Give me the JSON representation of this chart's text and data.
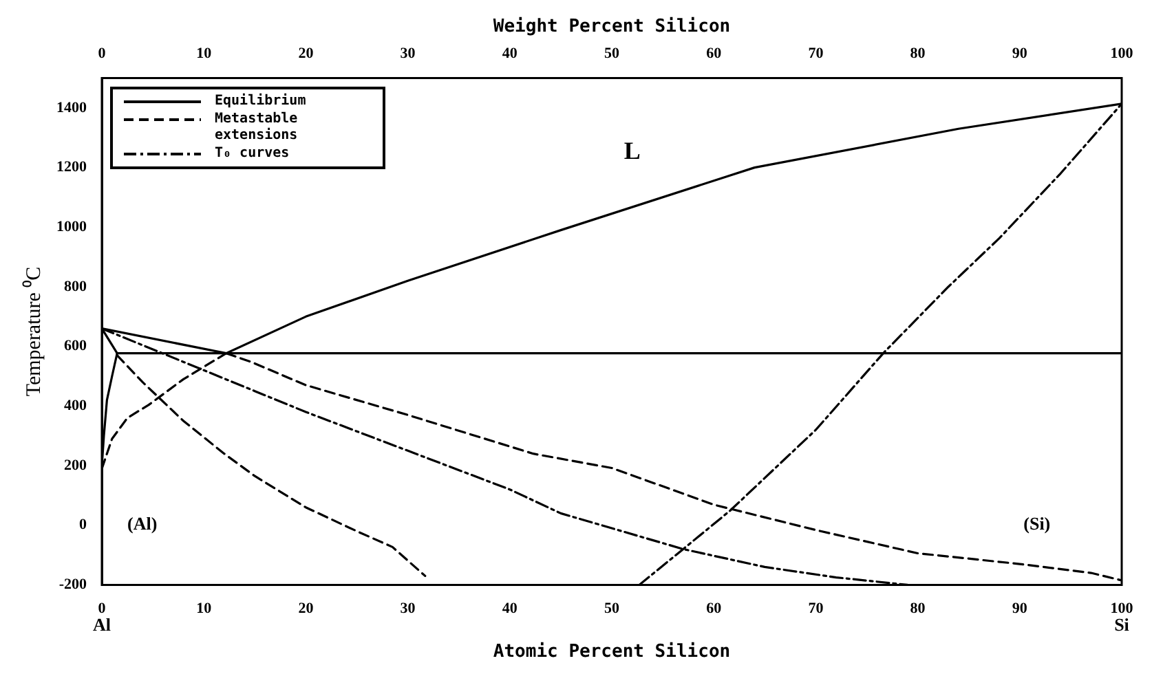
{
  "chart_data": {
    "type": "line",
    "xlabel": "Atomic Percent Silicon",
    "x2label": "Weight Percent Silicon",
    "ylabel": "Temperature ⁰C",
    "xlim": [
      0,
      100
    ],
    "xticks": [
      0,
      10,
      20,
      30,
      40,
      50,
      60,
      70,
      80,
      90,
      100
    ],
    "x2lim": [
      0,
      100
    ],
    "x2ticks": [
      0,
      10,
      20,
      30,
      40,
      50,
      60,
      70,
      80,
      90,
      100
    ],
    "ylim": [
      -200,
      1500
    ],
    "yticks": [
      -200,
      0,
      200,
      400,
      600,
      800,
      1000,
      1200,
      1400
    ],
    "grid": false,
    "legend": "top left",
    "marker": "none",
    "annotations": [
      "L",
      "(Al)",
      "(Si)",
      "Al",
      "Si"
    ],
    "series": [
      {
        "name": "Equilibrium",
        "color": "#000000",
        "line_style": "solid",
        "x": [
          0,
          12.2
        ],
        "values": [
          660,
          577
        ]
      },
      {
        "color": "#000000",
        "line_style": "solid",
        "x": [
          12.2,
          20,
          30,
          45,
          64,
          84,
          100
        ],
        "values": [
          577,
          700,
          820,
          990,
          1200,
          1330,
          1414
        ]
      },
      {
        "color": "#000000",
        "line_style": "solid",
        "x": [
          1.5,
          100
        ],
        "values": [
          577,
          577
        ]
      },
      {
        "color": "#000000",
        "line_style": "solid",
        "x": [
          0,
          1.5
        ],
        "values": [
          660,
          577
        ]
      },
      {
        "color": "#000000",
        "line_style": "solid",
        "x": [
          1.5,
          1,
          0.5,
          0.2,
          0
        ],
        "values": [
          577,
          500,
          420,
          300,
          200
        ]
      },
      {
        "name": "Metastable extensions",
        "color": "#000000",
        "line_style": "dashed",
        "x": [
          12.2,
          14.7,
          20,
          30,
          42.3,
          50,
          60,
          70,
          80,
          90,
          97,
          100
        ],
        "values": [
          577,
          547,
          470,
          370,
          240,
          192,
          69,
          -16,
          -94,
          -130,
          -160,
          -185
        ]
      },
      {
        "color": "#000000",
        "line_style": "dashed",
        "x": [
          1.5,
          4,
          8,
          12,
          15,
          20,
          25,
          28.5,
          31.7
        ],
        "values": [
          570,
          480,
          350,
          240,
          165,
          60,
          -20,
          -73,
          -170
        ]
      },
      {
        "color": "#000000",
        "line_style": "dashed",
        "x": [
          0,
          1,
          2.5,
          4.6,
          8,
          12.2
        ],
        "values": [
          190,
          290,
          360,
          404,
          490,
          577
        ]
      },
      {
        "name": "T₀ curves",
        "color": "#000000",
        "line_style": "dotted",
        "x": [
          0,
          5,
          10,
          15,
          20,
          30,
          40,
          45,
          50,
          57,
          65,
          72,
          79
        ],
        "values": [
          660,
          590,
          520,
          450,
          380,
          250,
          120,
          40,
          -10,
          -80,
          -140,
          -175,
          -200
        ]
      },
      {
        "color": "#000000",
        "line_style": "dotted",
        "x": [
          52.7,
          57,
          61.6,
          70,
          76.7,
          83,
          88,
          94,
          100
        ],
        "values": [
          -200,
          -80,
          49,
          320,
          580,
          800,
          963,
          1180,
          1414
        ]
      }
    ]
  }
}
